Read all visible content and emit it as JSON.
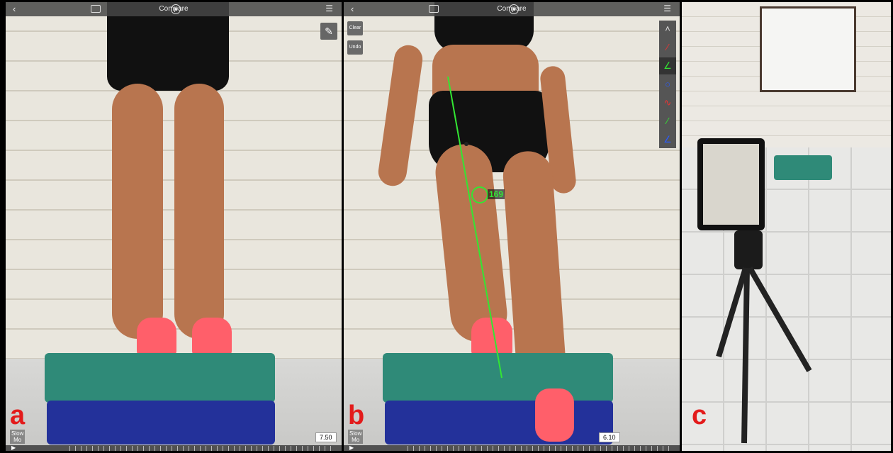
{
  "panels": {
    "a": {
      "topbar_title": "Compare",
      "slow_mo": "Slow\nMo",
      "time": "7.50",
      "letter": "a"
    },
    "b": {
      "topbar_title": "Compare",
      "clear_label": "Clear",
      "undo_label": "Undo",
      "angle": "169",
      "slow_mo": "Slow\nMo",
      "time": "6.10",
      "letter": "b"
    },
    "c": {
      "letter": "c"
    }
  },
  "icons": {
    "back": "chevron-left-icon",
    "chat": "comment-icon",
    "mic": "microphone-icon",
    "menu": "menu-icon",
    "pen": "pencil-icon",
    "play": "play-icon"
  },
  "colors": {
    "letters": "#e31b1b",
    "angle_line": "#33e633"
  }
}
